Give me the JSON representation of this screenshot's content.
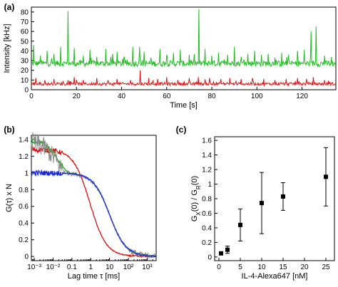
{
  "chart_data": [
    {
      "panel": "(a)",
      "type": "line",
      "xlabel": "Time [s]",
      "ylabel": "Intensity [kHz]",
      "xlim": [
        0,
        135
      ],
      "ylim": [
        0,
        85
      ],
      "xticks": [
        0,
        20,
        40,
        60,
        80,
        100,
        120
      ],
      "yticks": [
        0,
        10,
        20,
        30,
        40,
        50,
        60,
        70,
        80
      ],
      "series": [
        {
          "color": "#22bb22",
          "baseline": 27,
          "noise": 3,
          "spikes": [
            [
              1,
              46
            ],
            [
              4,
              35
            ],
            [
              7,
              40
            ],
            [
              10,
              37
            ],
            [
              13,
              44
            ],
            [
              16.2,
              81
            ],
            [
              19,
              43
            ],
            [
              23,
              35
            ],
            [
              26,
              41
            ],
            [
              29,
              34
            ],
            [
              33,
              42
            ],
            [
              36,
              37
            ],
            [
              38,
              39
            ],
            [
              41,
              33
            ],
            [
              45,
              44
            ],
            [
              48,
              44
            ],
            [
              50,
              39
            ],
            [
              53,
              33
            ],
            [
              57,
              42
            ],
            [
              60,
              36
            ],
            [
              63,
              38
            ],
            [
              66,
              41
            ],
            [
              70,
              36
            ],
            [
              74.2,
              83
            ],
            [
              77,
              42
            ],
            [
              80,
              35
            ],
            [
              83,
              38
            ],
            [
              87,
              36
            ],
            [
              90,
              44
            ],
            [
              93,
              34
            ],
            [
              96,
              37
            ],
            [
              99,
              40
            ],
            [
              102,
              36
            ],
            [
              105,
              37
            ],
            [
              108,
              33
            ],
            [
              111,
              38
            ],
            [
              114,
              36
            ],
            [
              118,
              40
            ],
            [
              121,
              41
            ],
            [
              124,
              60
            ],
            [
              126.3,
              65
            ],
            [
              130,
              35
            ]
          ]
        },
        {
          "color": "#dd1111",
          "baseline": 6,
          "noise": 1.5,
          "spikes": [
            [
              2,
              12
            ],
            [
              6,
              10
            ],
            [
              10,
              11
            ],
            [
              14,
              9
            ],
            [
              19,
              13
            ],
            [
              23,
              10
            ],
            [
              29,
              12
            ],
            [
              34,
              10
            ],
            [
              38,
              11
            ],
            [
              44,
              10
            ],
            [
              48.3,
              20
            ],
            [
              52,
              12
            ],
            [
              56,
              11
            ],
            [
              60,
              13
            ],
            [
              65,
              10
            ],
            [
              70,
              12
            ],
            [
              74,
              13
            ],
            [
              79,
              12
            ],
            [
              84,
              11
            ],
            [
              88,
              12
            ],
            [
              93,
              11
            ],
            [
              98,
              12
            ],
            [
              103,
              11
            ],
            [
              108,
              10
            ],
            [
              113,
              11
            ],
            [
              118,
              12
            ],
            [
              122,
              11
            ],
            [
              125,
              13
            ],
            [
              130,
              10
            ]
          ]
        }
      ]
    },
    {
      "panel": "(b)",
      "type": "line",
      "xscale": "log",
      "xlabel": "Lag time τ [ms]",
      "ylabel": "G(τ) x N",
      "xlim": [
        0.0007,
        3000
      ],
      "ylim": [
        -0.05,
        1.45
      ],
      "xtick_labels": [
        "10⁻³",
        "10⁻²",
        "0.1",
        "1",
        "10",
        "10²",
        "10³"
      ],
      "xtick_values": [
        0.001,
        0.01,
        0.1,
        1,
        10,
        100,
        1000
      ],
      "yticks": [
        0,
        0.2,
        0.4,
        0.6,
        0.8,
        1,
        1.2,
        1.4
      ],
      "curves": [
        {
          "color": "#dd1111",
          "model": "decay",
          "amplitude": 1.28,
          "tau": 0.9,
          "noisy": true
        },
        {
          "color": "#22aa22",
          "model": "two-component",
          "a_fast": 0.4,
          "tau_fast": 0.02,
          "a_slow": 1.0,
          "tau_slow": 10,
          "noisy": true
        },
        {
          "color": "#888888",
          "model": "two-component",
          "a_fast": 0.38,
          "tau_fast": 0.015,
          "a_slow": 1.0,
          "tau_slow": 10,
          "noisy": true
        },
        {
          "color": "#1a2ad6",
          "model": "decay",
          "amplitude": 1.0,
          "tau": 10,
          "noisy": true
        }
      ]
    },
    {
      "panel": "(c)",
      "type": "scatter",
      "xlabel": "IL-4-Alexa647 [nM]",
      "ylabel": "G_X(0) / G_R(0)",
      "ylabel_parts": {
        "g1": "G",
        "sub1": "X",
        "mid": "(0) / G",
        "sub2": "R",
        "end": "(0)"
      },
      "xlim": [
        -1,
        27
      ],
      "ylim": [
        -0.05,
        1.65
      ],
      "xticks": [
        0,
        5,
        10,
        15,
        20,
        25
      ],
      "yticks": [
        0,
        0.2,
        0.4,
        0.6,
        0.8,
        1,
        1.2,
        1.4,
        1.6
      ],
      "ytick_labels": [
        "0",
        "0.2",
        "0.4",
        "0.6",
        "0.8",
        "1",
        "1.2",
        "1.4",
        "1.6"
      ],
      "points": [
        {
          "x": 0.5,
          "y": 0.05,
          "err": 0.02
        },
        {
          "x": 2,
          "y": 0.1,
          "err": 0.05
        },
        {
          "x": 5,
          "y": 0.44,
          "err": 0.22
        },
        {
          "x": 10,
          "y": 0.74,
          "err": 0.42
        },
        {
          "x": 15,
          "y": 0.83,
          "err": 0.19
        },
        {
          "x": 25,
          "y": 1.1,
          "err": 0.4
        }
      ]
    }
  ]
}
